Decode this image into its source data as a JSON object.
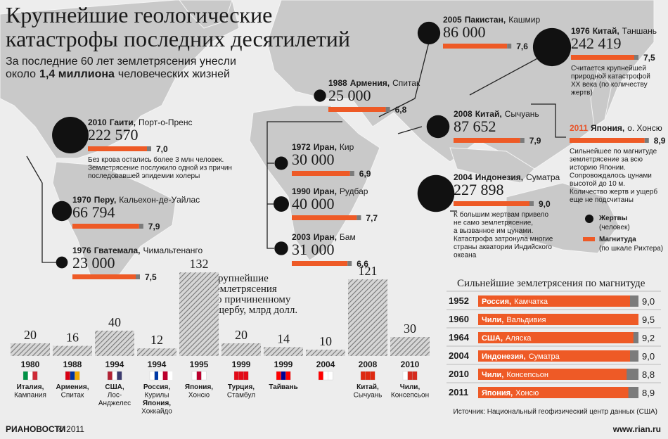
{
  "header": {
    "title_lines": [
      "Крупнейшие геологические",
      "катастрофы последних десятилетий"
    ],
    "subtitle_line1": "За последние 60 лет землетрясения унесли",
    "subtitle_line2": [
      "около",
      "1,4 миллиона",
      "человеческих жизней"
    ]
  },
  "quakes": [
    {
      "year": "2010",
      "country": "Гаити,",
      "place": "Порт-о-Пренс",
      "victims": 222570,
      "victims_label": "222 570",
      "magnitude": 7.0,
      "magnitude_label": "7,0",
      "note": [
        "Без крова остались более 3 млн человек.",
        "Землетрясение послужило одной из причин",
        "последовавшей эпидемии холеры"
      ]
    },
    {
      "year": "1970",
      "country": "Перу,",
      "place": "Кальехон-де-Уайлас",
      "victims": 66794,
      "victims_label": "66 794",
      "magnitude": 7.9,
      "magnitude_label": "7,9"
    },
    {
      "year": "1976",
      "country": "Гватемала,",
      "place": "Чимальтенанго",
      "victims": 23000,
      "victims_label": "23 000",
      "magnitude": 7.5,
      "magnitude_label": "7,5"
    },
    {
      "year": "1988",
      "country": "Армения,",
      "place": "Спитак",
      "victims": 25000,
      "victims_label": "25 000",
      "magnitude": 6.8,
      "magnitude_label": "6,8"
    },
    {
      "year": "1972",
      "country": "Иран,",
      "place": "Кир",
      "victims": 30000,
      "victims_label": "30 000",
      "magnitude": 6.9,
      "magnitude_label": "6,9"
    },
    {
      "year": "1990",
      "country": "Иран,",
      "place": "Рудбар",
      "victims": 40000,
      "victims_label": "40 000",
      "magnitude": 7.7,
      "magnitude_label": "7,7"
    },
    {
      "year": "2003",
      "country": "Иран,",
      "place": "Бам",
      "victims": 31000,
      "victims_label": "31 000",
      "magnitude": 6.6,
      "magnitude_label": "6,6"
    },
    {
      "year": "2005",
      "country": "Пакистан,",
      "place": "Кашмир",
      "victims": 86000,
      "victims_label": "86 000",
      "magnitude": 7.6,
      "magnitude_label": "7,6"
    },
    {
      "year": "2008",
      "country": "Китай,",
      "place": "Сычуань",
      "victims": 87652,
      "victims_label": "87 652",
      "magnitude": 7.9,
      "magnitude_label": "7,9"
    },
    {
      "year": "2004",
      "country": "Индонезия,",
      "place": "Суматра",
      "victims": 227898,
      "victims_label": "227 898",
      "magnitude": 9.0,
      "magnitude_label": "9,0",
      "note": [
        "К большим жертвам привело",
        "не само землетрясение,",
        "а  вызванное им цунами.",
        "Катастрофа затронула многие",
        "страны акватории Индийского",
        "океана"
      ]
    },
    {
      "year": "1976",
      "country": "Китай,",
      "place": "Таншань",
      "victims": 242419,
      "victims_label": "242 419",
      "magnitude": 7.5,
      "magnitude_label": "7,5",
      "note": [
        "Считается крупнейшей",
        "природной катастрофой",
        "XX века (по количеству",
        "жертв)"
      ]
    },
    {
      "year": "2011",
      "year_color": "#e8542a",
      "country": "Япония,",
      "place": "о. Хонсю",
      "magnitude": 8.9,
      "magnitude_label": "8,9",
      "note": [
        "Сильнейшее по магнитуде",
        "землетрясение за всю",
        "историю Японии.",
        "Сопровождалось цунами",
        "высотой до 10 м.",
        "Количество жертв и ущерб",
        "еще не подсчитаны"
      ]
    }
  ],
  "legend": {
    "victims": [
      "Жертвы",
      "(человек)"
    ],
    "magnitude": [
      "Магнитуда",
      "(по шкале Рихтера)"
    ]
  },
  "damage": {
    "title_lines": [
      "Крупнейшие",
      "землетрясения",
      "по причиненному",
      "ущербу, млрд долл."
    ],
    "items": [
      {
        "year": "1980",
        "places": [
          "Италия,",
          "Кампания"
        ],
        "value": 20
      },
      {
        "year": "1988",
        "places": [
          "Армения,",
          "Спитак"
        ],
        "value": 16
      },
      {
        "year": "1994",
        "places": [
          "США,",
          "Лос-",
          "Анджелес"
        ],
        "value": 40
      },
      {
        "year": "1994",
        "places": [
          "Россия,",
          "Курилы",
          "Япония,",
          "Хоккайдо"
        ],
        "value": 12
      },
      {
        "year": "1995",
        "places": [
          "Япония,",
          "Хонсю"
        ],
        "value": 132
      },
      {
        "year": "1999",
        "places": [
          "Турция,",
          "Стамбул"
        ],
        "value": 20
      },
      {
        "year": "1999",
        "places": [
          "Тайвань"
        ],
        "value": 14
      },
      {
        "year": "2004",
        "value": 10
      },
      {
        "year": "2008",
        "places": [
          "Китай,",
          "Сычуань"
        ],
        "value": 121
      },
      {
        "year": "2010",
        "places": [
          "Чили,",
          "Консепсьон"
        ],
        "value": 30
      }
    ]
  },
  "strongest": {
    "title": "Сильнейшие землетрясения по магнитуде",
    "rows": [
      {
        "year": "1952",
        "country": "Россия,",
        "place": "Камчатка",
        "magnitude": 9.0,
        "magnitude_label": "9,0"
      },
      {
        "year": "1960",
        "country": "Чили,",
        "place": "Вальдивия",
        "magnitude": 9.5,
        "magnitude_label": "9,5"
      },
      {
        "year": "1964",
        "country": "США,",
        "place": "Аляска",
        "magnitude": 9.2,
        "magnitude_label": "9,2"
      },
      {
        "year": "2004",
        "country": "Индонезия,",
        "place": "Суматра",
        "magnitude": 9.0,
        "magnitude_label": "9,0"
      },
      {
        "year": "2010",
        "country": "Чили,",
        "place": "Консепсьон",
        "magnitude": 8.8,
        "magnitude_label": "8,8"
      },
      {
        "year": "2011",
        "country": "Япония,",
        "place": "Хонсю",
        "magnitude": 8.9,
        "magnitude_label": "8,9"
      }
    ],
    "source": "Источник: Национальный геофизический центр данных (США)"
  },
  "footer": {
    "agency": "РИАНОВОСТИ",
    "copyright": "© 2011",
    "url": "www.rian.ru"
  }
}
